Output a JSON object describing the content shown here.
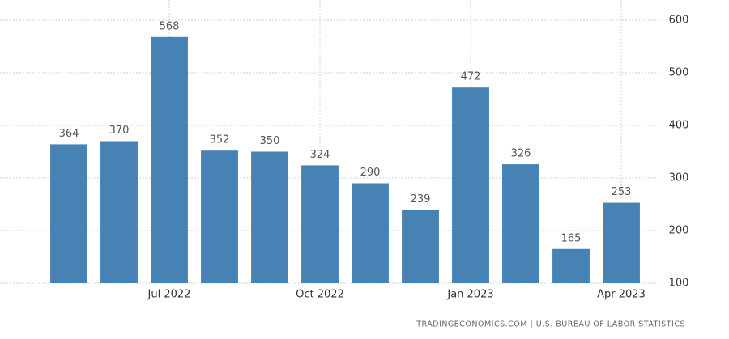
{
  "chart_data": {
    "type": "bar",
    "categories": [
      null,
      null,
      "Jul 2022",
      null,
      null,
      "Oct 2022",
      null,
      null,
      "Jan 2023",
      null,
      null,
      "Apr 2023"
    ],
    "values": [
      364,
      370,
      568,
      352,
      350,
      324,
      290,
      239,
      472,
      326,
      165,
      253
    ],
    "color": "#4682b4",
    "ylim": [
      100,
      600
    ],
    "yticks": [
      100,
      200,
      300,
      400,
      500,
      600
    ],
    "y_axis_side": "right",
    "grid": true,
    "source": "TRADINGECONOMICS.COM | U.S. BUREAU OF LABOR STATISTICS"
  }
}
